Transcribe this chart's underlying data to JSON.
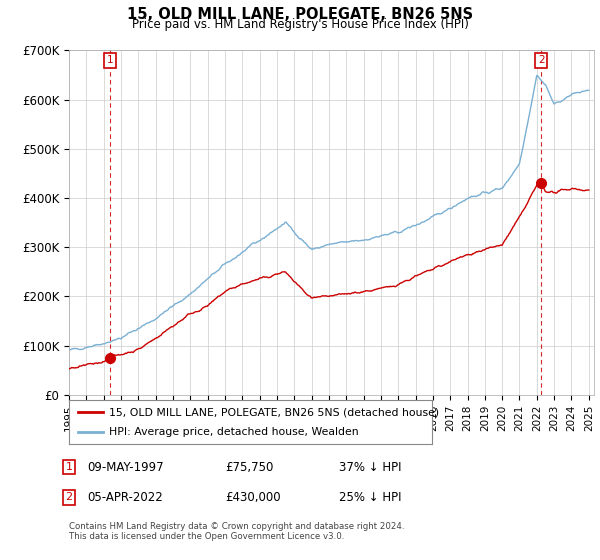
{
  "title": "15, OLD MILL LANE, POLEGATE, BN26 5NS",
  "subtitle": "Price paid vs. HM Land Registry's House Price Index (HPI)",
  "legend_line1": "15, OLD MILL LANE, POLEGATE, BN26 5NS (detached house)",
  "legend_line2": "HPI: Average price, detached house, Wealden",
  "sale1_date": "09-MAY-1997",
  "sale1_price": "£75,750",
  "sale1_hpi": "37% ↓ HPI",
  "sale2_date": "05-APR-2022",
  "sale2_price": "£430,000",
  "sale2_hpi": "25% ↓ HPI",
  "footer": "Contains HM Land Registry data © Crown copyright and database right 2024.\nThis data is licensed under the Open Government Licence v3.0.",
  "sale_color": "#cc0000",
  "hpi_color": "#7ab0d4",
  "ylim": [
    0,
    700000
  ],
  "yticks": [
    0,
    100000,
    200000,
    300000,
    400000,
    500000,
    600000,
    700000
  ],
  "ytick_labels": [
    "£0",
    "£100K",
    "£200K",
    "£300K",
    "£400K",
    "£500K",
    "£600K",
    "£700K"
  ],
  "xlim_start": 1995.0,
  "xlim_end": 2025.3,
  "sale1_x": 1997.35,
  "sale1_y": 75750,
  "sale2_x": 2022.25,
  "sale2_y": 430000,
  "vline1_x": 1997.35,
  "vline2_x": 2022.25
}
